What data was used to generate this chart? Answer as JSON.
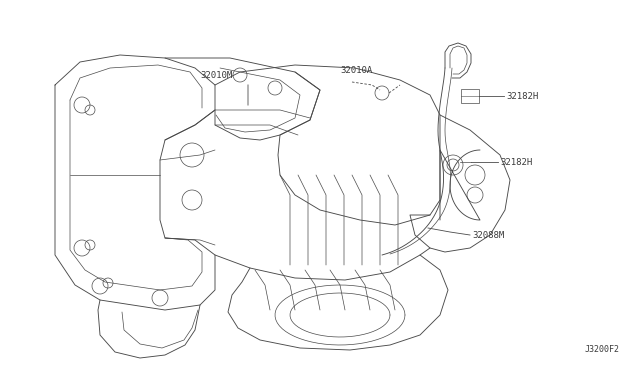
{
  "background_color": "#ffffff",
  "fig_width": 6.4,
  "fig_height": 3.72,
  "dpi": 100,
  "diagram_id": "J3200F2",
  "line_color": "#4a4a4a",
  "text_color": "#3a3a3a",
  "label_32010M": "32010M",
  "label_32010A": "32010A",
  "label_32182H_top": "32182H",
  "label_32182H_mid": "32182H",
  "label_32088M": "32088M"
}
